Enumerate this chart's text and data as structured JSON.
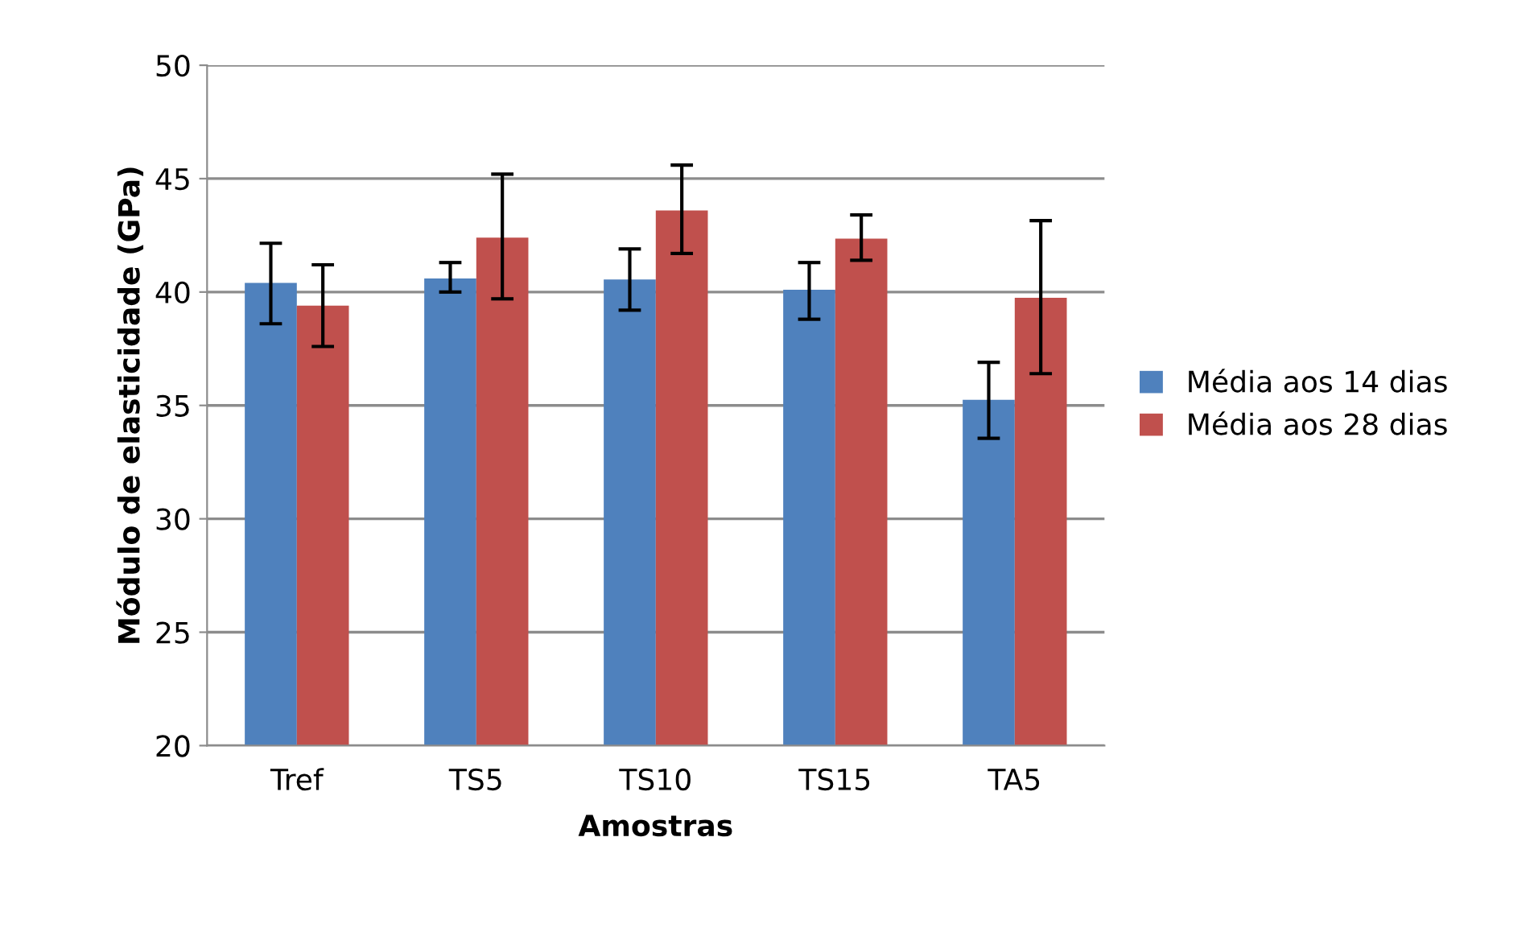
{
  "chart_data": {
    "type": "bar",
    "xlabel": "Amostras",
    "ylabel": "Módulo de elasticidade (GPa)",
    "categories": [
      "Tref",
      "TS5",
      "TS10",
      "TS15",
      "TA5"
    ],
    "series": [
      {
        "name": "Média aos 14 dias",
        "color": "#4f81bd",
        "values": [
          40.4,
          40.6,
          40.55,
          40.1,
          35.25
        ],
        "errors": [
          [
            38.6,
            42.15
          ],
          [
            40.0,
            41.3
          ],
          [
            39.2,
            41.9
          ],
          [
            38.8,
            41.3
          ],
          [
            33.55,
            36.9
          ]
        ]
      },
      {
        "name": "Média aos 28 dias",
        "color": "#c0504d",
        "values": [
          39.4,
          42.4,
          43.6,
          42.35,
          39.75
        ],
        "errors": [
          [
            37.6,
            41.2
          ],
          [
            39.7,
            45.2
          ],
          [
            41.7,
            45.6
          ],
          [
            41.4,
            43.4
          ],
          [
            36.4,
            43.15
          ]
        ]
      }
    ],
    "ylim": [
      20,
      50
    ],
    "yticks": [
      20,
      25,
      30,
      35,
      40,
      45,
      50
    ],
    "grid": "y",
    "legend": "right"
  }
}
